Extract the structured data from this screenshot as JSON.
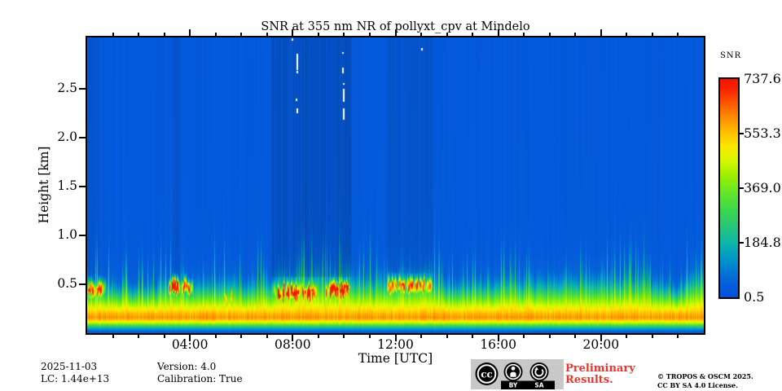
{
  "figure": {
    "title": "SNR at 355 nm NR of pollyxt_cpv at Mindelo",
    "footer": {
      "date": "2025-11-03",
      "lc": "LC: 1.44e+13",
      "version": "Version: 4.0",
      "calibration": "Calibration: True"
    },
    "preliminary_line1": "Preliminary",
    "preliminary_line2": "Results.",
    "copyright_line1": "© TROPOS & OSCM 2025.",
    "copyright_line2": "CC BY SA 4.0 License.",
    "license_badge": {
      "cc_label": "cc",
      "by_label": "BY",
      "sa_label": "SA"
    },
    "colors": {
      "preliminary_red": "#e8362e",
      "badge_gray": "#c8c8c8",
      "axis_black": "#000000"
    }
  },
  "chart_data": {
    "type": "heatmap",
    "title": "SNR at 355 nm NR of pollyxt_cpv at Mindelo",
    "xlabel": "Time [UTC]",
    "ylabel": "Height [km]",
    "x_range": [
      0,
      24
    ],
    "y_range_km": [
      0,
      3.03
    ],
    "x_ticks": [
      {
        "hour": 4,
        "label": "04:00"
      },
      {
        "hour": 8,
        "label": "08:00"
      },
      {
        "hour": 12,
        "label": "12:00"
      },
      {
        "hour": 16,
        "label": "16:00"
      },
      {
        "hour": 20,
        "label": "20:00"
      }
    ],
    "x_minor_tick_every_h": 1,
    "y_ticks": [
      {
        "km": 0.5,
        "label": "0.5"
      },
      {
        "km": 1.0,
        "label": "1.0"
      },
      {
        "km": 1.5,
        "label": "1.5"
      },
      {
        "km": 2.0,
        "label": "2.0"
      },
      {
        "km": 2.5,
        "label": "2.5"
      }
    ],
    "colorbar": {
      "label": "SNR",
      "min": 0.5,
      "max": 737.6,
      "ticks": [
        {
          "value": 737.6,
          "label": "737.6"
        },
        {
          "value": 553.3,
          "label": "553.3"
        },
        {
          "value": 369.0,
          "label": "369.0"
        },
        {
          "value": 184.8,
          "label": "184.8"
        },
        {
          "value": 0.5,
          "label": "0.5"
        }
      ]
    },
    "colormap_stops": [
      [
        0.0,
        "#0450dc"
      ],
      [
        0.08,
        "#0566d8"
      ],
      [
        0.16,
        "#0090cc"
      ],
      [
        0.24,
        "#0cb4ae"
      ],
      [
        0.32,
        "#28c47e"
      ],
      [
        0.4,
        "#3cd84e"
      ],
      [
        0.48,
        "#64e828"
      ],
      [
        0.56,
        "#a0f000"
      ],
      [
        0.63,
        "#d8f800"
      ],
      [
        0.69,
        "#fce800"
      ],
      [
        0.75,
        "#ffc400"
      ],
      [
        0.82,
        "#ff9000"
      ],
      [
        0.89,
        "#fc5800"
      ],
      [
        0.95,
        "#fa2800"
      ],
      [
        1.0,
        "#f81400"
      ]
    ],
    "mean_profile_km_snr": [
      [
        0.0,
        15
      ],
      [
        0.025,
        70
      ],
      [
        0.05,
        160
      ],
      [
        0.075,
        280
      ],
      [
        0.1,
        420
      ],
      [
        0.13,
        540
      ],
      [
        0.16,
        600
      ],
      [
        0.2,
        565
      ],
      [
        0.24,
        505
      ],
      [
        0.29,
        430
      ],
      [
        0.34,
        345
      ],
      [
        0.39,
        250
      ],
      [
        0.44,
        165
      ],
      [
        0.49,
        105
      ],
      [
        0.55,
        60
      ],
      [
        0.63,
        36
      ],
      [
        0.8,
        27
      ],
      [
        3.03,
        25
      ]
    ],
    "aerosol_top_scale": [
      [
        0.0,
        1.1
      ],
      [
        0.9,
        1.05
      ],
      [
        1.6,
        0.9
      ],
      [
        2.6,
        0.95
      ],
      [
        3.1,
        1.15
      ],
      [
        4.3,
        1.05
      ],
      [
        5.1,
        1.1
      ],
      [
        5.6,
        1.25
      ],
      [
        6.1,
        1.05
      ],
      [
        7.0,
        1.15
      ],
      [
        7.6,
        1.35
      ],
      [
        9.1,
        1.35
      ],
      [
        10.4,
        1.3
      ],
      [
        11.1,
        1.15
      ],
      [
        11.9,
        1.3
      ],
      [
        13.4,
        1.35
      ],
      [
        13.9,
        1.05
      ],
      [
        15.6,
        1.05
      ],
      [
        16.3,
        1.15
      ],
      [
        17.6,
        1.2
      ],
      [
        19.2,
        1.25
      ],
      [
        20.3,
        1.15
      ],
      [
        21.3,
        1.25
      ],
      [
        22.3,
        1.1
      ],
      [
        22.7,
        0.9
      ],
      [
        23.2,
        0.95
      ],
      [
        23.5,
        1.3
      ],
      [
        24.0,
        1.25
      ]
    ],
    "clouds": [
      {
        "t0": -0.1,
        "t1": 0.8,
        "base": 0.34,
        "top": 0.54,
        "peak": 640
      },
      {
        "t0": 3.1,
        "t1": 4.2,
        "base": 0.38,
        "top": 0.56,
        "peak": 660
      },
      {
        "t0": 5.15,
        "t1": 5.95,
        "base": 0.24,
        "top": 0.46,
        "peak": 420
      },
      {
        "t0": 7.15,
        "t1": 9.05,
        "base": 0.3,
        "top": 0.53,
        "peak": 700
      },
      {
        "t0": 9.2,
        "t1": 10.25,
        "base": 0.34,
        "top": 0.54,
        "peak": 700
      },
      {
        "t0": 11.6,
        "t1": 13.5,
        "base": 0.38,
        "top": 0.58,
        "peak": 560
      }
    ],
    "cloud_cores": [
      {
        "t": 0.08,
        "h": 0.44
      },
      {
        "t": 0.42,
        "h": 0.45
      },
      {
        "t": 3.42,
        "h": 0.45
      },
      {
        "t": 3.88,
        "h": 0.48
      },
      {
        "t": 7.5,
        "h": 0.38
      },
      {
        "t": 7.78,
        "h": 0.4
      },
      {
        "t": 8.02,
        "h": 0.4
      },
      {
        "t": 8.22,
        "h": 0.42
      },
      {
        "t": 8.5,
        "h": 0.42
      },
      {
        "t": 8.78,
        "h": 0.44
      },
      {
        "t": 9.48,
        "h": 0.46
      },
      {
        "t": 9.75,
        "h": 0.45
      },
      {
        "t": 10.02,
        "h": 0.48
      },
      {
        "t": 10.15,
        "h": 0.47
      },
      {
        "t": 12.28,
        "h": 0.5
      },
      {
        "t": 12.62,
        "h": 0.49
      }
    ],
    "attenuated_columns": [
      {
        "t0": 0.0,
        "t1": 0.5,
        "strength": 0.06,
        "above_km": 0.6
      },
      {
        "t0": 3.35,
        "t1": 3.6,
        "strength": 0.1,
        "above_km": 0.6
      },
      {
        "t0": 7.2,
        "t1": 10.3,
        "strength": 0.18,
        "above_km": 0.58
      },
      {
        "t0": 11.65,
        "t1": 13.45,
        "strength": 0.1,
        "above_km": 0.62
      }
    ],
    "overflow_marks": [
      {
        "t": 7.99,
        "h0": 3.0,
        "h1": 3.02
      },
      {
        "t": 8.18,
        "h0": 2.7,
        "h1": 2.86
      },
      {
        "t": 8.18,
        "h0": 2.66,
        "h1": 2.69
      },
      {
        "t": 8.15,
        "h0": 2.38,
        "h1": 2.4
      },
      {
        "t": 8.18,
        "h0": 2.25,
        "h1": 2.3
      },
      {
        "t": 9.97,
        "h0": 2.86,
        "h1": 2.88
      },
      {
        "t": 9.97,
        "h0": 2.66,
        "h1": 2.72
      },
      {
        "t": 9.98,
        "h0": 2.55,
        "h1": 2.56
      },
      {
        "t": 9.98,
        "h0": 2.37,
        "h1": 2.5
      },
      {
        "t": 9.99,
        "h0": 2.19,
        "h1": 2.3
      },
      {
        "t": 13.03,
        "h0": 2.9,
        "h1": 2.92
      }
    ]
  }
}
